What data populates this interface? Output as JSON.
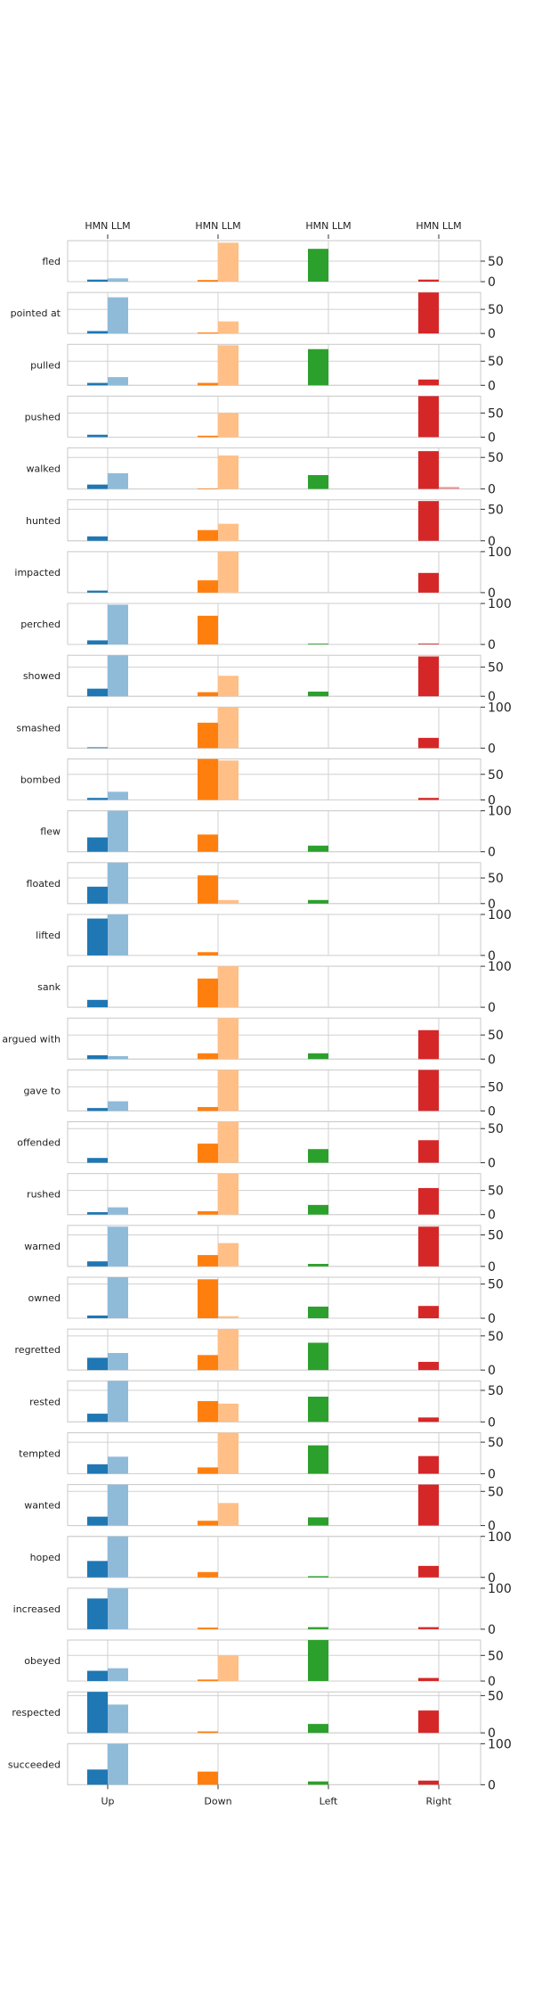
{
  "chart_data": {
    "type": "bar",
    "layout": "small-multiples, one row per verb, shared x categories",
    "categories": [
      "Up",
      "Down",
      "Left",
      "Right"
    ],
    "top_tick_label": "HMN LLM",
    "series": [
      {
        "name": "HMN",
        "role": "solid bar, left of category tick"
      },
      {
        "name": "LLM",
        "role": "light bar, right of category tick"
      }
    ],
    "colors": {
      "Up": {
        "HMN": "#1f77b4",
        "LLM": "#8fbbd9"
      },
      "Down": {
        "HMN": "#ff7f0e",
        "LLM": "#ffbf86"
      },
      "Left": {
        "HMN": "#2ca02c",
        "LLM": "#95cf95"
      },
      "Right": {
        "HMN": "#d62728",
        "LLM": "#ea9393"
      }
    },
    "grid": "vertical gridline at each category",
    "panels": [
      {
        "verb": "fled",
        "ymax": 100,
        "yticks": [
          0,
          50
        ],
        "values": {
          "Up": [
            5,
            8
          ],
          "Down": [
            4,
            95
          ],
          "Left": [
            80,
            0
          ],
          "Right": [
            5,
            0
          ]
        }
      },
      {
        "verb": "pointed at",
        "ymax": 85,
        "yticks": [
          0,
          50
        ],
        "values": {
          "Up": [
            5,
            75
          ],
          "Down": [
            2,
            25
          ],
          "Left": [
            0,
            0
          ],
          "Right": [
            85,
            0
          ]
        }
      },
      {
        "verb": "pulled",
        "ymax": 85,
        "yticks": [
          0,
          50
        ],
        "values": {
          "Up": [
            5,
            17
          ],
          "Down": [
            5,
            83
          ],
          "Left": [
            75,
            0
          ],
          "Right": [
            12,
            0
          ]
        }
      },
      {
        "verb": "pushed",
        "ymax": 85,
        "yticks": [
          0,
          50
        ],
        "values": {
          "Up": [
            5,
            0
          ],
          "Down": [
            3,
            50
          ],
          "Left": [
            0,
            0
          ],
          "Right": [
            85,
            0
          ]
        }
      },
      {
        "verb": "walked",
        "ymax": 65,
        "yticks": [
          0,
          50
        ],
        "values": {
          "Up": [
            7,
            25
          ],
          "Down": [
            1,
            53
          ],
          "Left": [
            22,
            0
          ],
          "Right": [
            60,
            3
          ]
        }
      },
      {
        "verb": "hunted",
        "ymax": 65,
        "yticks": [
          0,
          50
        ],
        "values": {
          "Up": [
            7,
            0
          ],
          "Down": [
            17,
            27
          ],
          "Left": [
            0,
            0
          ],
          "Right": [
            63,
            0
          ]
        }
      },
      {
        "verb": "impacted",
        "ymax": 100,
        "yticks": [
          0,
          100
        ],
        "values": {
          "Up": [
            5,
            0
          ],
          "Down": [
            30,
            100
          ],
          "Left": [
            0,
            0
          ],
          "Right": [
            48,
            0
          ]
        }
      },
      {
        "verb": "perched",
        "ymax": 100,
        "yticks": [
          0,
          100
        ],
        "values": {
          "Up": [
            10,
            97
          ],
          "Down": [
            70,
            0
          ],
          "Left": [
            2,
            0
          ],
          "Right": [
            2,
            0
          ]
        }
      },
      {
        "verb": "showed",
        "ymax": 70,
        "yticks": [
          0,
          50
        ],
        "values": {
          "Up": [
            13,
            70
          ],
          "Down": [
            7,
            35
          ],
          "Left": [
            8,
            0
          ],
          "Right": [
            68,
            0
          ]
        }
      },
      {
        "verb": "smashed",
        "ymax": 100,
        "yticks": [
          0,
          100
        ],
        "values": {
          "Up": [
            2,
            0
          ],
          "Down": [
            62,
            100
          ],
          "Left": [
            0,
            0
          ],
          "Right": [
            25,
            0
          ]
        }
      },
      {
        "verb": "bombed",
        "ymax": 80,
        "yticks": [
          0,
          50
        ],
        "values": {
          "Up": [
            4,
            16
          ],
          "Down": [
            80,
            77
          ],
          "Left": [
            0,
            0
          ],
          "Right": [
            4,
            0
          ]
        }
      },
      {
        "verb": "flew",
        "ymax": 100,
        "yticks": [
          0,
          100
        ],
        "values": {
          "Up": [
            35,
            100
          ],
          "Down": [
            42,
            0
          ],
          "Left": [
            15,
            0
          ],
          "Right": [
            0,
            0
          ]
        }
      },
      {
        "verb": "floated",
        "ymax": 80,
        "yticks": [
          0,
          50
        ],
        "values": {
          "Up": [
            33,
            80
          ],
          "Down": [
            55,
            7
          ],
          "Left": [
            7,
            0
          ],
          "Right": [
            0,
            0
          ]
        }
      },
      {
        "verb": "lifted",
        "ymax": 100,
        "yticks": [
          0,
          100
        ],
        "values": {
          "Up": [
            90,
            100
          ],
          "Down": [
            8,
            0
          ],
          "Left": [
            0,
            0
          ],
          "Right": [
            0,
            0
          ]
        }
      },
      {
        "verb": "sank",
        "ymax": 100,
        "yticks": [
          0,
          100
        ],
        "values": {
          "Up": [
            18,
            0
          ],
          "Down": [
            70,
            100
          ],
          "Left": [
            0,
            0
          ],
          "Right": [
            0,
            0
          ]
        }
      },
      {
        "verb": "argued with",
        "ymax": 85,
        "yticks": [
          0,
          50
        ],
        "values": {
          "Up": [
            8,
            6
          ],
          "Down": [
            12,
            85
          ],
          "Left": [
            12,
            0
          ],
          "Right": [
            60,
            0
          ]
        }
      },
      {
        "verb": "gave to",
        "ymax": 85,
        "yticks": [
          0,
          50
        ],
        "values": {
          "Up": [
            6,
            20
          ],
          "Down": [
            8,
            85
          ],
          "Left": [
            0,
            0
          ],
          "Right": [
            85,
            0
          ]
        }
      },
      {
        "verb": "offended",
        "ymax": 60,
        "yticks": [
          0,
          50
        ],
        "values": {
          "Up": [
            7,
            0
          ],
          "Down": [
            28,
            60
          ],
          "Left": [
            20,
            0
          ],
          "Right": [
            33,
            0
          ]
        }
      },
      {
        "verb": "rushed",
        "ymax": 85,
        "yticks": [
          0,
          50
        ],
        "values": {
          "Up": [
            5,
            15
          ],
          "Down": [
            7,
            85
          ],
          "Left": [
            20,
            0
          ],
          "Right": [
            55,
            0
          ]
        }
      },
      {
        "verb": "warned",
        "ymax": 65,
        "yticks": [
          0,
          50
        ],
        "values": {
          "Up": [
            8,
            63
          ],
          "Down": [
            18,
            37
          ],
          "Left": [
            4,
            0
          ],
          "Right": [
            63,
            0
          ]
        }
      },
      {
        "verb": "owned",
        "ymax": 60,
        "yticks": [
          0,
          50
        ],
        "values": {
          "Up": [
            4,
            60
          ],
          "Down": [
            57,
            3
          ],
          "Left": [
            17,
            0
          ],
          "Right": [
            18,
            0
          ]
        }
      },
      {
        "verb": "regretted",
        "ymax": 60,
        "yticks": [
          0,
          50
        ],
        "values": {
          "Up": [
            18,
            25
          ],
          "Down": [
            22,
            60
          ],
          "Left": [
            40,
            0
          ],
          "Right": [
            12,
            0
          ]
        }
      },
      {
        "verb": "rested",
        "ymax": 65,
        "yticks": [
          0,
          50
        ],
        "values": {
          "Up": [
            13,
            65
          ],
          "Down": [
            33,
            29
          ],
          "Left": [
            40,
            0
          ],
          "Right": [
            7,
            0
          ]
        }
      },
      {
        "verb": "tempted",
        "ymax": 65,
        "yticks": [
          0,
          50
        ],
        "values": {
          "Up": [
            15,
            27
          ],
          "Down": [
            10,
            65
          ],
          "Left": [
            45,
            0
          ],
          "Right": [
            28,
            0
          ]
        }
      },
      {
        "verb": "wanted",
        "ymax": 60,
        "yticks": [
          0,
          50
        ],
        "values": {
          "Up": [
            13,
            60
          ],
          "Down": [
            7,
            33
          ],
          "Left": [
            12,
            0
          ],
          "Right": [
            60,
            0
          ]
        }
      },
      {
        "verb": "hoped",
        "ymax": 100,
        "yticks": [
          0,
          100
        ],
        "values": {
          "Up": [
            40,
            100
          ],
          "Down": [
            13,
            0
          ],
          "Left": [
            3,
            0
          ],
          "Right": [
            28,
            0
          ]
        }
      },
      {
        "verb": "increased",
        "ymax": 100,
        "yticks": [
          0,
          100
        ],
        "values": {
          "Up": [
            75,
            100
          ],
          "Down": [
            4,
            0
          ],
          "Left": [
            5,
            0
          ],
          "Right": [
            5,
            0
          ]
        }
      },
      {
        "verb": "obeyed",
        "ymax": 80,
        "yticks": [
          0,
          50
        ],
        "values": {
          "Up": [
            20,
            25
          ],
          "Down": [
            3,
            50
          ],
          "Left": [
            80,
            0
          ],
          "Right": [
            6,
            0
          ]
        }
      },
      {
        "verb": "respected",
        "ymax": 55,
        "yticks": [
          0,
          50
        ],
        "values": {
          "Up": [
            55,
            38
          ],
          "Down": [
            2,
            0
          ],
          "Left": [
            12,
            0
          ],
          "Right": [
            30,
            0
          ]
        }
      },
      {
        "verb": "succeeded",
        "ymax": 100,
        "yticks": [
          0,
          100
        ],
        "values": {
          "Up": [
            37,
            100
          ],
          "Down": [
            32,
            0
          ],
          "Left": [
            8,
            0
          ],
          "Right": [
            10,
            0
          ]
        }
      }
    ]
  }
}
